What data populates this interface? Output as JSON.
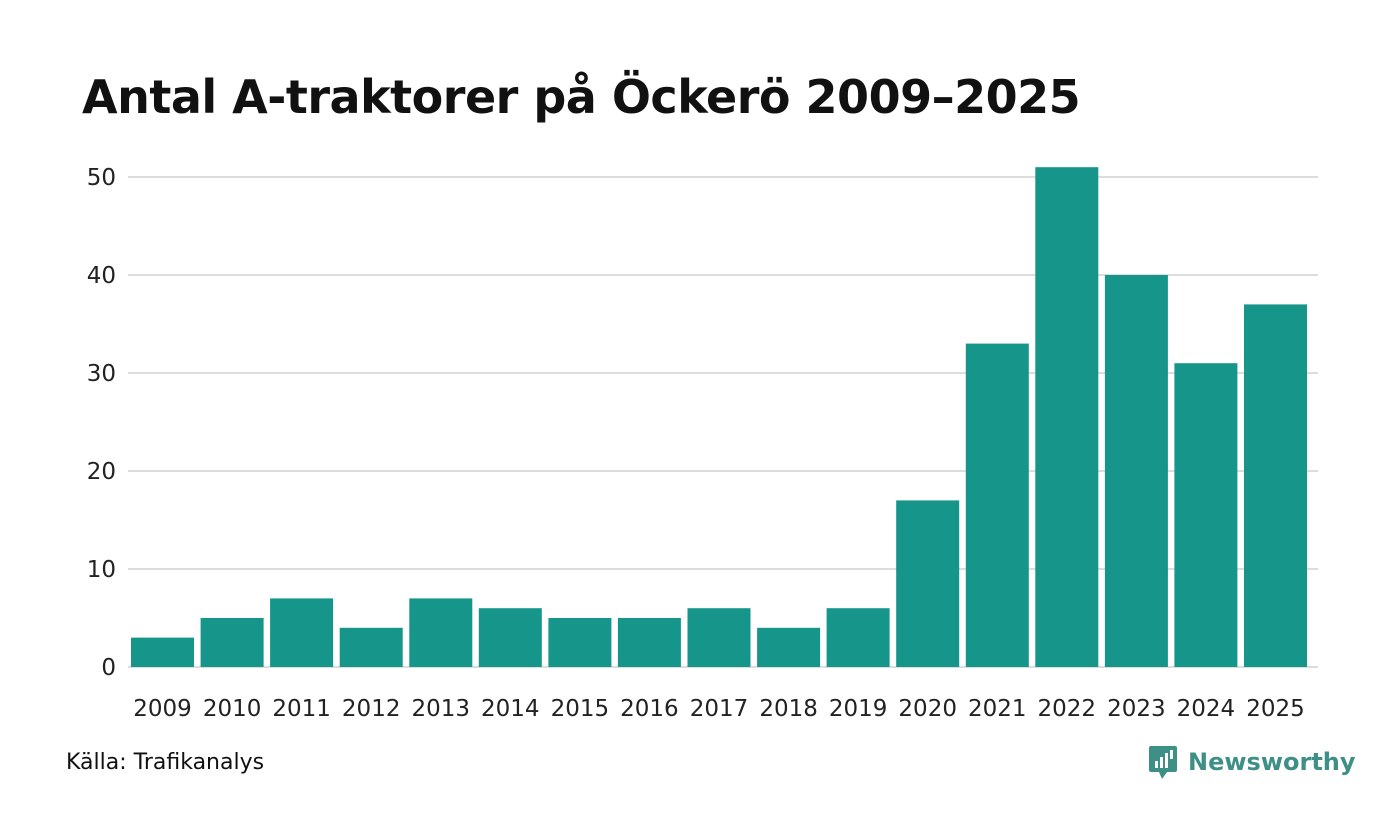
{
  "chart_data": {
    "type": "bar",
    "title": "Antal A-traktorer på Öckerö 2009–2025",
    "categories": [
      "2009",
      "2010",
      "2011",
      "2012",
      "2013",
      "2014",
      "2015",
      "2016",
      "2017",
      "2018",
      "2019",
      "2020",
      "2021",
      "2022",
      "2023",
      "2024",
      "2025"
    ],
    "values": [
      3,
      5,
      7,
      4,
      7,
      6,
      5,
      5,
      6,
      4,
      6,
      17,
      33,
      51,
      40,
      31,
      37
    ],
    "yticks": [
      0,
      10,
      20,
      30,
      40,
      50
    ],
    "ylim": [
      0,
      52
    ],
    "xlabel": "",
    "ylabel": "",
    "grid": true,
    "bar_color": "#16968a",
    "grid_color": "#dddddd"
  },
  "footer": {
    "source": "Källa: Trafikanalys",
    "brand": "Newsworthy",
    "brand_color": "#3e8f86"
  }
}
